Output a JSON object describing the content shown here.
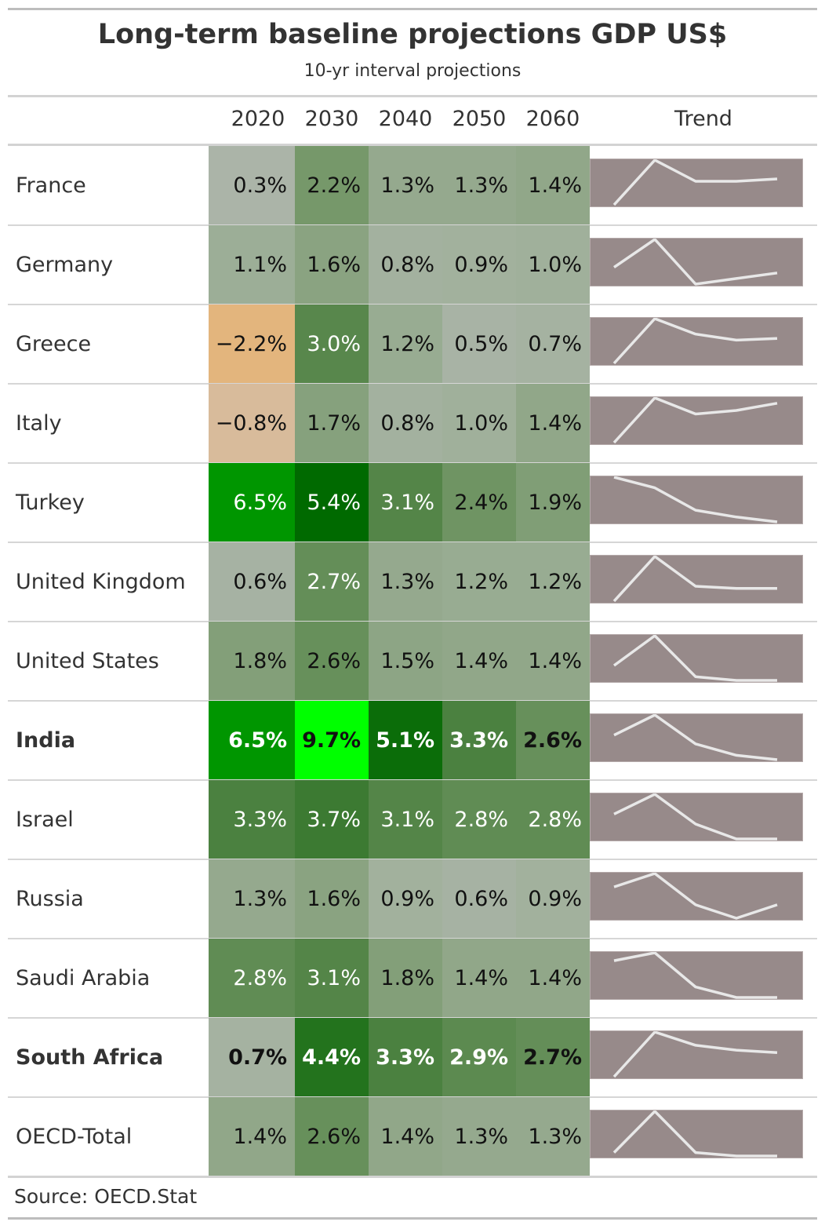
{
  "title": "Long-term baseline projections GDP US$",
  "subtitle": "10-yr interval projections",
  "source": "Source: OECD.Stat",
  "trend_header": "Trend",
  "colors": {
    "sparkline_bg": "#978a8a",
    "sparkline_line": "#e8e8e8",
    "negative_strong": "#e3b57d",
    "negative_light": "#d2b9a8",
    "neutral": "#b0b5ae",
    "positive_peak": "#00ff00"
  },
  "chart_data": {
    "type": "table",
    "title": "Long-term baseline projections GDP US$",
    "subtitle": "10-yr interval projections",
    "columns": [
      "2020",
      "2030",
      "2040",
      "2050",
      "2060"
    ],
    "rows": [
      {
        "country": "France",
        "bold": false,
        "values": [
          0.3,
          2.2,
          1.3,
          1.3,
          1.4
        ],
        "labels": [
          "0.3%",
          "2.2%",
          "1.3%",
          "1.3%",
          "1.4%"
        ]
      },
      {
        "country": "Germany",
        "bold": false,
        "values": [
          1.1,
          1.6,
          0.8,
          0.9,
          1.0
        ],
        "labels": [
          "1.1%",
          "1.6%",
          "0.8%",
          "0.9%",
          "1.0%"
        ]
      },
      {
        "country": "Greece",
        "bold": false,
        "values": [
          -2.2,
          3.0,
          1.2,
          0.5,
          0.7
        ],
        "labels": [
          "−2.2%",
          "3.0%",
          "1.2%",
          "0.5%",
          "0.7%"
        ]
      },
      {
        "country": "Italy",
        "bold": false,
        "values": [
          -0.8,
          1.7,
          0.8,
          1.0,
          1.4
        ],
        "labels": [
          "−0.8%",
          "1.7%",
          "0.8%",
          "1.0%",
          "1.4%"
        ]
      },
      {
        "country": "Turkey",
        "bold": false,
        "values": [
          6.5,
          5.4,
          3.1,
          2.4,
          1.9
        ],
        "labels": [
          "6.5%",
          "5.4%",
          "3.1%",
          "2.4%",
          "1.9%"
        ]
      },
      {
        "country": "United Kingdom",
        "bold": false,
        "values": [
          0.6,
          2.7,
          1.3,
          1.2,
          1.2
        ],
        "labels": [
          "0.6%",
          "2.7%",
          "1.3%",
          "1.2%",
          "1.2%"
        ]
      },
      {
        "country": "United States",
        "bold": false,
        "values": [
          1.8,
          2.6,
          1.5,
          1.4,
          1.4
        ],
        "labels": [
          "1.8%",
          "2.6%",
          "1.5%",
          "1.4%",
          "1.4%"
        ]
      },
      {
        "country": "India",
        "bold": true,
        "values": [
          6.5,
          9.7,
          5.1,
          3.3,
          2.6
        ],
        "labels": [
          "6.5%",
          "9.7%",
          "5.1%",
          "3.3%",
          "2.6%"
        ]
      },
      {
        "country": "Israel",
        "bold": false,
        "values": [
          3.3,
          3.7,
          3.1,
          2.8,
          2.8
        ],
        "labels": [
          "3.3%",
          "3.7%",
          "3.1%",
          "2.8%",
          "2.8%"
        ]
      },
      {
        "country": "Russia",
        "bold": false,
        "values": [
          1.3,
          1.6,
          0.9,
          0.6,
          0.9
        ],
        "labels": [
          "1.3%",
          "1.6%",
          "0.9%",
          "0.6%",
          "0.9%"
        ]
      },
      {
        "country": "Saudi Arabia",
        "bold": false,
        "values": [
          2.8,
          3.1,
          1.8,
          1.4,
          1.4
        ],
        "labels": [
          "2.8%",
          "3.1%",
          "1.8%",
          "1.4%",
          "1.4%"
        ]
      },
      {
        "country": "South Africa",
        "bold": true,
        "values": [
          0.7,
          4.4,
          3.3,
          2.9,
          2.7
        ],
        "labels": [
          "0.7%",
          "4.4%",
          "3.3%",
          "2.9%",
          "2.7%"
        ]
      },
      {
        "country": "OECD-Total",
        "bold": false,
        "values": [
          1.4,
          2.6,
          1.4,
          1.3,
          1.3
        ],
        "labels": [
          "1.4%",
          "2.6%",
          "1.4%",
          "1.3%",
          "1.3%"
        ]
      }
    ]
  }
}
